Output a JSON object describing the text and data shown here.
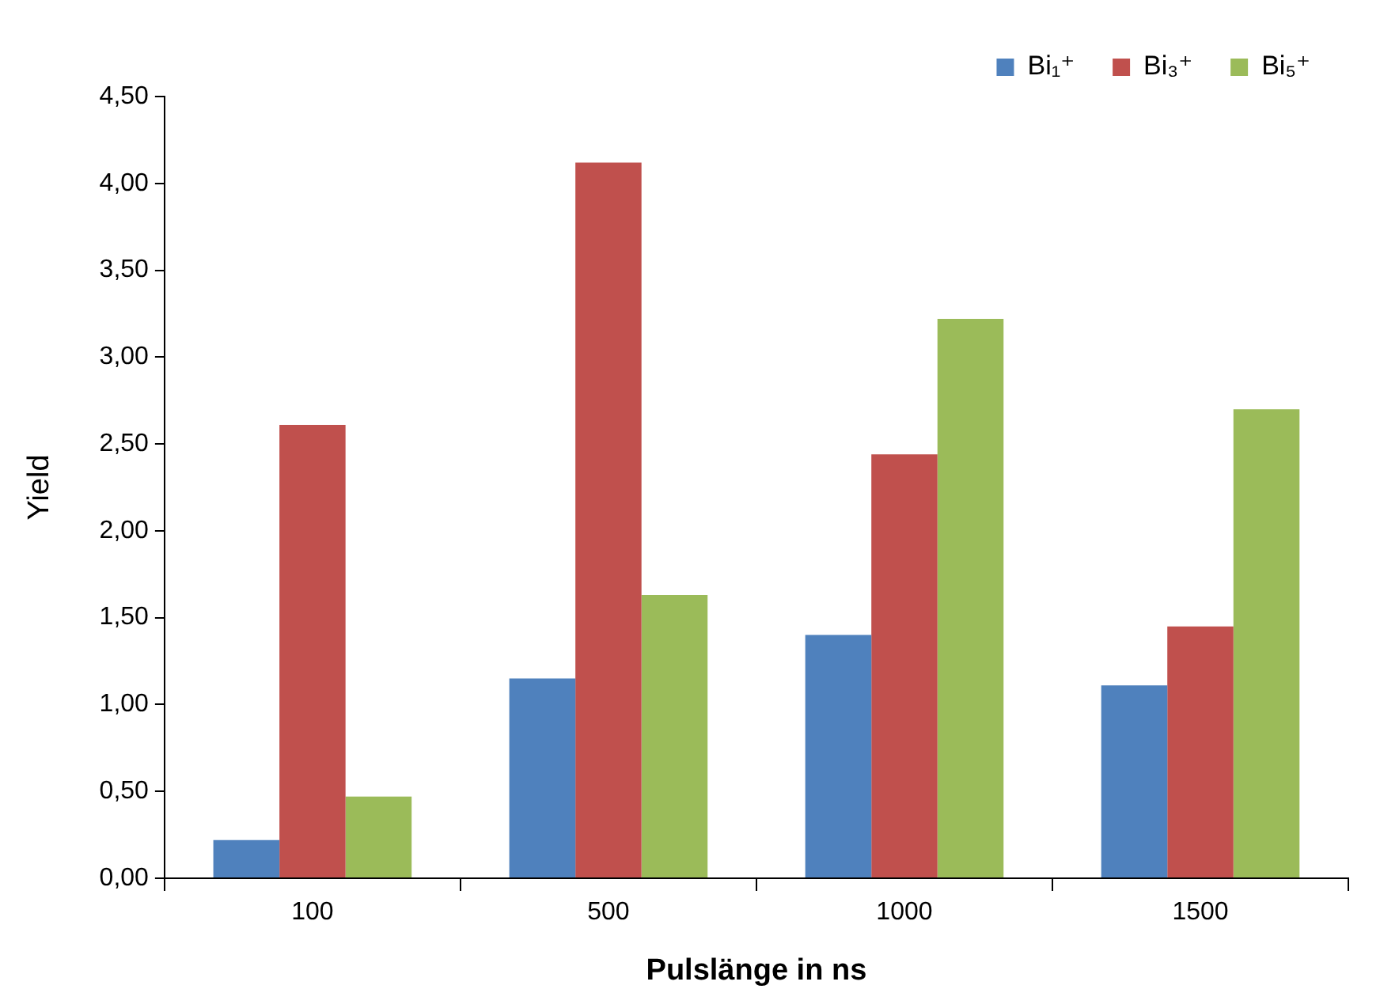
{
  "chart_data": {
    "type": "bar",
    "xlabel": "Pulslänge in ns",
    "ylabel": "Yield",
    "categories": [
      "100",
      "500",
      "1000",
      "1500"
    ],
    "series": [
      {
        "name": "Bi₁⁺",
        "color": "#4f81bd",
        "values": [
          0.22,
          1.15,
          1.4,
          1.11
        ]
      },
      {
        "name": "Bi₃⁺",
        "color": "#c0504d",
        "values": [
          2.61,
          4.12,
          2.44,
          1.45
        ]
      },
      {
        "name": "Bi₅⁺",
        "color": "#9bbb59",
        "values": [
          0.47,
          1.63,
          3.22,
          2.7
        ]
      }
    ],
    "ylim": [
      0,
      4.5
    ],
    "yticks": [
      {
        "value": 0,
        "label": "0,00"
      },
      {
        "value": 0.5,
        "label": "0,50"
      },
      {
        "value": 1,
        "label": "1,00"
      },
      {
        "value": 1.5,
        "label": "1,50"
      },
      {
        "value": 2,
        "label": "2,00"
      },
      {
        "value": 2.5,
        "label": "2,50"
      },
      {
        "value": 3,
        "label": "3,00"
      },
      {
        "value": 3.5,
        "label": "3,50"
      },
      {
        "value": 4,
        "label": "4,00"
      },
      {
        "value": 4.5,
        "label": "4,50"
      }
    ],
    "grid": false,
    "legend": "top right"
  }
}
